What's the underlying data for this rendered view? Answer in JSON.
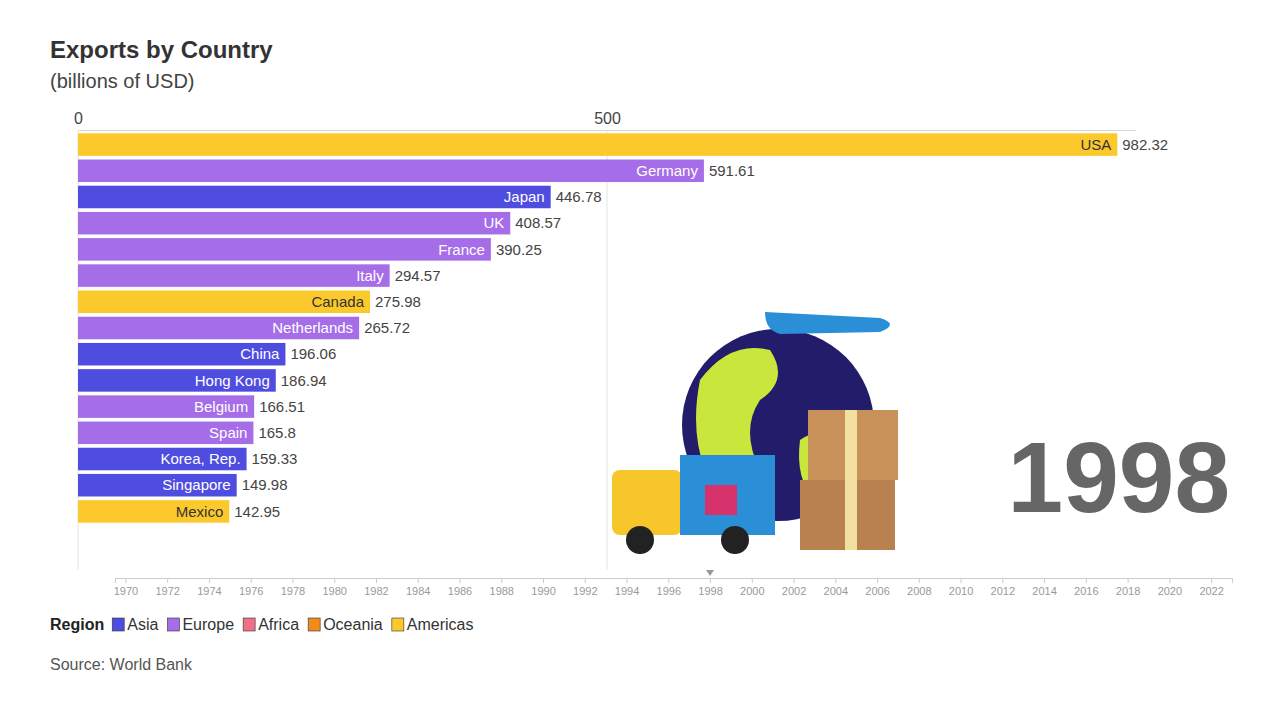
{
  "chart_data": {
    "type": "bar",
    "orientation": "horizontal",
    "title": "Exports by Country",
    "subtitle": "(billions of USD)",
    "categories": [
      "USA",
      "Germany",
      "Japan",
      "UK",
      "France",
      "Italy",
      "Canada",
      "Netherlands",
      "China",
      "Hong Kong",
      "Belgium",
      "Spain",
      "Korea, Rep.",
      "Singapore",
      "Mexico"
    ],
    "values": [
      982.32,
      591.61,
      446.78,
      408.57,
      390.25,
      294.57,
      275.98,
      265.72,
      196.06,
      186.94,
      166.51,
      165.8,
      159.33,
      149.98,
      142.95
    ],
    "colors": [
      "#fcc92c",
      "#a66de8",
      "#4f4de0",
      "#a66de8",
      "#a66de8",
      "#a66de8",
      "#fcc92c",
      "#a66de8",
      "#4f4de0",
      "#4f4de0",
      "#a66de8",
      "#a66de8",
      "#4f4de0",
      "#4f4de0",
      "#fcc92c"
    ],
    "xlim": [
      0,
      1000
    ],
    "xticks": [
      0,
      500
    ],
    "grid": true,
    "data_labels": true,
    "legend": "bottom",
    "legend_title": "Region",
    "regions": [
      {
        "name": "Asia",
        "color": "#4f4de0"
      },
      {
        "name": "Europe",
        "color": "#a66de8"
      },
      {
        "name": "Africa",
        "color": "#f0708a"
      },
      {
        "name": "Oceania",
        "color": "#f08c1c"
      },
      {
        "name": "Americas",
        "color": "#fcc92c"
      }
    ],
    "timeline": {
      "lim": [
        1969.5,
        2023
      ],
      "ticks": [
        1970,
        1972,
        1974,
        1976,
        1978,
        1980,
        1982,
        1984,
        1986,
        1988,
        1990,
        1992,
        1994,
        1996,
        1998,
        2000,
        2002,
        2004,
        2006,
        2008,
        2010,
        2012,
        2014,
        2016,
        2018,
        2020,
        2022
      ],
      "value": 1998
    },
    "source": "Source: World Bank"
  }
}
